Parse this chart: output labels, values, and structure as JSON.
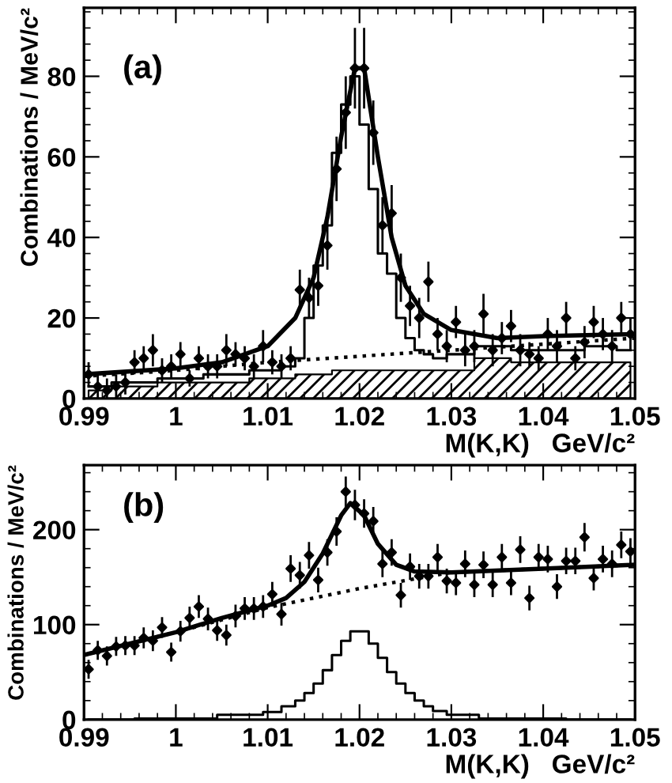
{
  "chart_data": [
    {
      "type": "scatter",
      "xlabel": "M(K,K)   GeV/c²",
      "ylabel": "Combinations / MeV/c²",
      "annotations": [
        "(a)"
      ],
      "xlim": [
        0.99,
        1.05
      ],
      "xticks": [
        0.99,
        1,
        1.01,
        1.02,
        1.03,
        1.04,
        1.05
      ],
      "ylim": [
        0,
        97
      ],
      "yticks": [
        0,
        20,
        40,
        60,
        80
      ],
      "grid": false,
      "legend": false,
      "series": [
        {
          "type": "area",
          "color": "#000000",
          "x": [
            0.9905,
            0.9955,
            1.0005,
            1.0055,
            1.0105,
            1.0155,
            1.0185,
            1.0225,
            1.0265,
            1.0305,
            1.0345,
            1.0385,
            1.0425,
            1.0465,
            1.0495
          ],
          "values": [
            2,
            3,
            4,
            4,
            5,
            6,
            7,
            7,
            7,
            7,
            10,
            9,
            9,
            9,
            9
          ]
        },
        {
          "type": "step",
          "color": "#000000",
          "x": [
            0.9905,
            0.9955,
            1.0005,
            1.0055,
            1.0105,
            1.0125,
            1.0135,
            1.0145,
            1.0155,
            1.0165,
            1.0175,
            1.0185,
            1.0195,
            1.0205,
            1.0215,
            1.0225,
            1.0235,
            1.0245,
            1.0255,
            1.0265,
            1.0275,
            1.0285,
            1.0305,
            1.0345,
            1.0385,
            1.0425,
            1.0465,
            1.0495
          ],
          "values": [
            3,
            4,
            5,
            6,
            7,
            8,
            10,
            20,
            33,
            43,
            61,
            73,
            80,
            68,
            52,
            36,
            31,
            20,
            15,
            12,
            11,
            10,
            11,
            13,
            12,
            12,
            13,
            12
          ]
        },
        {
          "type": "line",
          "line_style": "dotted",
          "color": "#000000",
          "x": [
            0.99,
            1.0,
            1.01,
            1.02,
            1.03,
            1.04,
            1.05
          ],
          "values": [
            5.5,
            7,
            9,
            10.5,
            12,
            13.5,
            15
          ]
        },
        {
          "type": "line",
          "line_style": "solid",
          "color": "#000000",
          "x": [
            0.99,
            1.0,
            1.005,
            1.01,
            1.013,
            1.015,
            1.0165,
            1.018,
            1.0195,
            1.0205,
            1.022,
            1.0235,
            1.025,
            1.027,
            1.03,
            1.035,
            1.04,
            1.05
          ],
          "values": [
            6,
            7.5,
            9,
            13,
            20,
            30,
            45,
            65,
            82,
            82,
            60,
            40,
            28,
            21,
            17,
            15,
            15.5,
            16
          ]
        },
        {
          "marker": "diamond",
          "color": "#000000",
          "x": [
            0.9905,
            0.9915,
            0.9925,
            0.9935,
            0.9945,
            0.9955,
            0.9965,
            0.9975,
            0.9985,
            0.9995,
            1.0005,
            1.0015,
            1.0025,
            1.0035,
            1.0045,
            1.0055,
            1.0065,
            1.0075,
            1.0085,
            1.0095,
            1.0105,
            1.0115,
            1.0125,
            1.0135,
            1.0145,
            1.0155,
            1.0165,
            1.0175,
            1.0185,
            1.0195,
            1.0205,
            1.0215,
            1.0225,
            1.0235,
            1.0245,
            1.0255,
            1.0265,
            1.0275,
            1.0285,
            1.0295,
            1.0305,
            1.0315,
            1.0325,
            1.0335,
            1.0345,
            1.0355,
            1.0365,
            1.0375,
            1.0385,
            1.0395,
            1.0405,
            1.0415,
            1.0425,
            1.0435,
            1.0445,
            1.0455,
            1.0465,
            1.0475,
            1.0485,
            1.0495
          ],
          "values": [
            6,
            3,
            2,
            3,
            4,
            9,
            10,
            12,
            7,
            8,
            11,
            5,
            10,
            8,
            8,
            12,
            11,
            10,
            8,
            13,
            9,
            8,
            10,
            27,
            25,
            28,
            38,
            57,
            71,
            82,
            82,
            66,
            43,
            46,
            30,
            23,
            20,
            29,
            16,
            13,
            19,
            12,
            13,
            21,
            12,
            15,
            18,
            12,
            11,
            10,
            16,
            13,
            20,
            10,
            14,
            19,
            16,
            13,
            20,
            16
          ],
          "errors": [
            3,
            3,
            3,
            3,
            3,
            3,
            3,
            4,
            3,
            3,
            3,
            2,
            3,
            3,
            3,
            4,
            3,
            3,
            3,
            4,
            3,
            3,
            3,
            5,
            5,
            5,
            6,
            8,
            9,
            10,
            10,
            8,
            7,
            7,
            6,
            5,
            5,
            5,
            4,
            4,
            4,
            4,
            4,
            5,
            4,
            4,
            4,
            4,
            3,
            3,
            4,
            4,
            4,
            3,
            4,
            4,
            4,
            4,
            4,
            4
          ]
        }
      ]
    },
    {
      "type": "scatter",
      "xlabel": "M(K,K)   GeV/c²",
      "ylabel": "Combinations / MeV/c²",
      "annotations": [
        "(b)"
      ],
      "xlim": [
        0.99,
        1.05
      ],
      "xticks": [
        0.99,
        1,
        1.01,
        1.02,
        1.03,
        1.04,
        1.05
      ],
      "ylim": [
        0,
        268
      ],
      "yticks": [
        0,
        100,
        200
      ],
      "grid": false,
      "legend": false,
      "series": [
        {
          "type": "step",
          "color": "#000000",
          "x": [
            0.9905,
            1.0005,
            1.0085,
            1.0105,
            1.0125,
            1.0135,
            1.0145,
            1.0155,
            1.0165,
            1.0175,
            1.0185,
            1.0195,
            1.0205,
            1.0215,
            1.0225,
            1.0235,
            1.0245,
            1.0255,
            1.0265,
            1.0275,
            1.0285,
            1.0305,
            1.0355,
            1.0495
          ],
          "values": [
            0,
            1,
            5,
            8,
            14,
            20,
            28,
            38,
            52,
            68,
            83,
            93,
            93,
            80,
            65,
            50,
            38,
            28,
            20,
            14,
            9,
            5,
            1,
            0
          ]
        },
        {
          "type": "line",
          "line_style": "dotted",
          "color": "#000000",
          "x": [
            0.99,
            1.0,
            1.01,
            1.02,
            1.03,
            1.04,
            1.05
          ],
          "values": [
            68,
            92,
            118,
            138,
            155,
            159,
            163
          ]
        },
        {
          "type": "line",
          "line_style": "solid",
          "color": "#000000",
          "x": [
            0.99,
            1.0,
            1.005,
            1.01,
            1.012,
            1.014,
            1.016,
            1.018,
            1.019,
            1.0205,
            1.022,
            1.024,
            1.026,
            1.03,
            1.04,
            1.05
          ],
          "values": [
            68,
            92,
            107,
            120,
            128,
            145,
            175,
            215,
            228,
            215,
            185,
            163,
            156,
            155,
            159,
            163
          ]
        },
        {
          "marker": "diamond",
          "color": "#000000",
          "x": [
            0.9905,
            0.9915,
            0.9925,
            0.9935,
            0.9945,
            0.9955,
            0.9965,
            0.9975,
            0.9985,
            0.9995,
            1.0005,
            1.0015,
            1.0025,
            1.0035,
            1.0045,
            1.0055,
            1.0065,
            1.0075,
            1.0085,
            1.0095,
            1.0105,
            1.0115,
            1.0125,
            1.0135,
            1.0145,
            1.0155,
            1.0165,
            1.0175,
            1.0185,
            1.0195,
            1.0205,
            1.0215,
            1.0225,
            1.0235,
            1.0245,
            1.0255,
            1.0265,
            1.0275,
            1.0285,
            1.0295,
            1.0305,
            1.0315,
            1.0325,
            1.0335,
            1.0345,
            1.0355,
            1.0365,
            1.0375,
            1.0385,
            1.0395,
            1.0405,
            1.0415,
            1.0425,
            1.0435,
            1.0445,
            1.0455,
            1.0465,
            1.0475,
            1.0485,
            1.0495
          ],
          "values": [
            53,
            73,
            67,
            77,
            78,
            78,
            86,
            83,
            97,
            71,
            93,
            107,
            119,
            106,
            94,
            89,
            109,
            117,
            117,
            119,
            132,
            111,
            159,
            152,
            173,
            147,
            176,
            198,
            240,
            226,
            217,
            209,
            164,
            176,
            131,
            161,
            151,
            151,
            171,
            146,
            144,
            164,
            142,
            163,
            142,
            171,
            144,
            179,
            128,
            171,
            169,
            140,
            167,
            167,
            192,
            149,
            169,
            164,
            184,
            177
          ],
          "errors": [
            10,
            10,
            10,
            10,
            10,
            10,
            11,
            11,
            11,
            10,
            11,
            12,
            12,
            12,
            11,
            11,
            12,
            12,
            12,
            12,
            13,
            12,
            14,
            14,
            14,
            13,
            14,
            15,
            16,
            16,
            15,
            15,
            14,
            14,
            13,
            14,
            13,
            13,
            14,
            13,
            13,
            14,
            13,
            14,
            13,
            14,
            13,
            14,
            13,
            14,
            14,
            13,
            14,
            14,
            15,
            13,
            14,
            14,
            14,
            14
          ]
        }
      ]
    }
  ]
}
